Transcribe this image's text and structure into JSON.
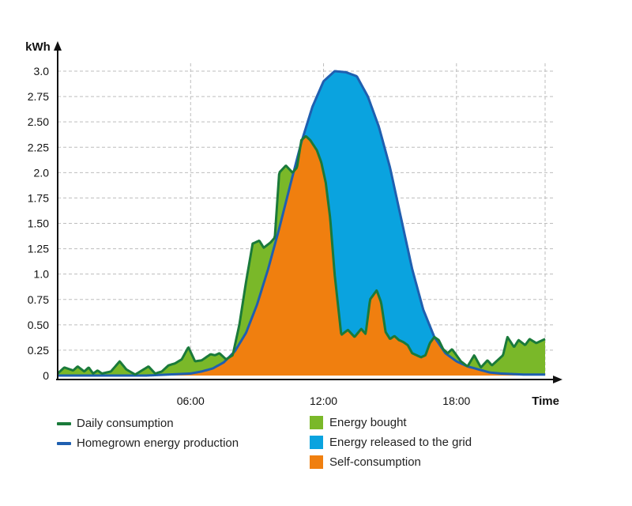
{
  "chart_data": {
    "type": "area",
    "y_axis_label": "kWh",
    "x_axis_label": "Time",
    "y_ticks": [
      {
        "value": 0,
        "label": "0"
      },
      {
        "value": 0.25,
        "label": "0.25"
      },
      {
        "value": 0.5,
        "label": "0.50"
      },
      {
        "value": 0.75,
        "label": "0.75"
      },
      {
        "value": 1.0,
        "label": "1.0"
      },
      {
        "value": 1.25,
        "label": "1.25"
      },
      {
        "value": 1.5,
        "label": "1.50"
      },
      {
        "value": 1.75,
        "label": "1.75"
      },
      {
        "value": 2.0,
        "label": "2.0"
      },
      {
        "value": 2.25,
        "label": "2.25"
      },
      {
        "value": 2.5,
        "label": "2.50"
      },
      {
        "value": 2.75,
        "label": "2.75"
      },
      {
        "value": 3.0,
        "label": "3.0"
      }
    ],
    "x_ticks": [
      {
        "value": 6,
        "label": "06:00"
      },
      {
        "value": 12,
        "label": "12:00"
      },
      {
        "value": 18,
        "label": "18:00"
      }
    ],
    "xlim": [
      0,
      22
    ],
    "ylim": [
      0,
      3.0
    ],
    "grid": true,
    "series": [
      {
        "name": "Daily consumption",
        "role": "line",
        "color": "#1a7a3a",
        "x": [
          0,
          0.3,
          0.7,
          0.9,
          1.2,
          1.4,
          1.6,
          1.8,
          2.0,
          2.4,
          2.8,
          3.1,
          3.5,
          3.8,
          4.1,
          4.4,
          4.7,
          5.0,
          5.3,
          5.6,
          5.9,
          6.2,
          6.5,
          6.7,
          6.9,
          7.1,
          7.3,
          7.6,
          7.9,
          8.2,
          8.5,
          8.8,
          9.1,
          9.3,
          9.6,
          9.8,
          10.0,
          10.3,
          10.6,
          10.8,
          11.0,
          11.2,
          11.4,
          11.7,
          11.9,
          12.1,
          12.3,
          12.5,
          12.8,
          13.1,
          13.4,
          13.7,
          13.9,
          14.1,
          14.4,
          14.6,
          14.8,
          15.0,
          15.2,
          15.4,
          15.6,
          15.8,
          16.0,
          16.2,
          16.4,
          16.6,
          16.8,
          17.0,
          17.2,
          17.4,
          17.6,
          17.8,
          18.0,
          18.2,
          18.5,
          18.8,
          19.1,
          19.4,
          19.6,
          19.8,
          20.1,
          20.3,
          20.6,
          20.8,
          21.1,
          21.3,
          21.6,
          21.9,
          22.0
        ],
        "values": [
          0.02,
          0.08,
          0.05,
          0.09,
          0.04,
          0.08,
          0.02,
          0.05,
          0.02,
          0.04,
          0.14,
          0.06,
          0.01,
          0.05,
          0.09,
          0.02,
          0.04,
          0.1,
          0.12,
          0.16,
          0.28,
          0.14,
          0.15,
          0.18,
          0.21,
          0.2,
          0.22,
          0.16,
          0.2,
          0.5,
          0.92,
          1.3,
          1.33,
          1.26,
          1.31,
          1.36,
          2.0,
          2.07,
          2.0,
          2.05,
          2.32,
          2.36,
          2.32,
          2.22,
          2.1,
          1.9,
          1.55,
          1.0,
          0.4,
          0.45,
          0.38,
          0.46,
          0.41,
          0.75,
          0.84,
          0.72,
          0.43,
          0.36,
          0.39,
          0.35,
          0.33,
          0.3,
          0.22,
          0.2,
          0.18,
          0.2,
          0.32,
          0.38,
          0.35,
          0.26,
          0.22,
          0.26,
          0.2,
          0.14,
          0.09,
          0.2,
          0.08,
          0.15,
          0.1,
          0.14,
          0.2,
          0.38,
          0.28,
          0.35,
          0.3,
          0.36,
          0.32,
          0.35,
          0.36
        ]
      },
      {
        "name": "Homegrown energy production",
        "role": "line",
        "color": "#1f5fb0",
        "x": [
          0,
          3.0,
          4.0,
          5.0,
          6.0,
          6.5,
          7.0,
          7.5,
          8.0,
          8.5,
          9.0,
          9.5,
          10.0,
          10.5,
          11.0,
          11.5,
          12.0,
          12.5,
          13.0,
          13.5,
          14.0,
          14.5,
          15.0,
          15.5,
          16.0,
          16.5,
          17.0,
          17.5,
          18.0,
          18.5,
          19.0,
          19.5,
          20.0,
          21.0,
          22.0
        ],
        "values": [
          0,
          0,
          0,
          0.01,
          0.02,
          0.04,
          0.07,
          0.13,
          0.24,
          0.42,
          0.7,
          1.05,
          1.45,
          1.88,
          2.3,
          2.65,
          2.9,
          3.0,
          2.99,
          2.95,
          2.75,
          2.45,
          2.05,
          1.55,
          1.05,
          0.65,
          0.38,
          0.22,
          0.14,
          0.09,
          0.06,
          0.03,
          0.02,
          0.01,
          0.01
        ]
      }
    ],
    "areas": [
      {
        "name": "Energy bought",
        "color": "#7ab829",
        "definition": "consumption above production"
      },
      {
        "name": "Energy released to the grid",
        "color": "#0aa3df",
        "definition": "production above consumption"
      },
      {
        "name": "Self-consumption",
        "color": "#f07f0f",
        "definition": "min(consumption, production)"
      }
    ]
  },
  "legend": {
    "daily_consumption": "Daily consumption",
    "homegrown_production": "Homegrown energy production",
    "energy_bought": "Energy bought",
    "energy_released": "Energy released to the grid",
    "self_consumption": "Self-consumption"
  }
}
